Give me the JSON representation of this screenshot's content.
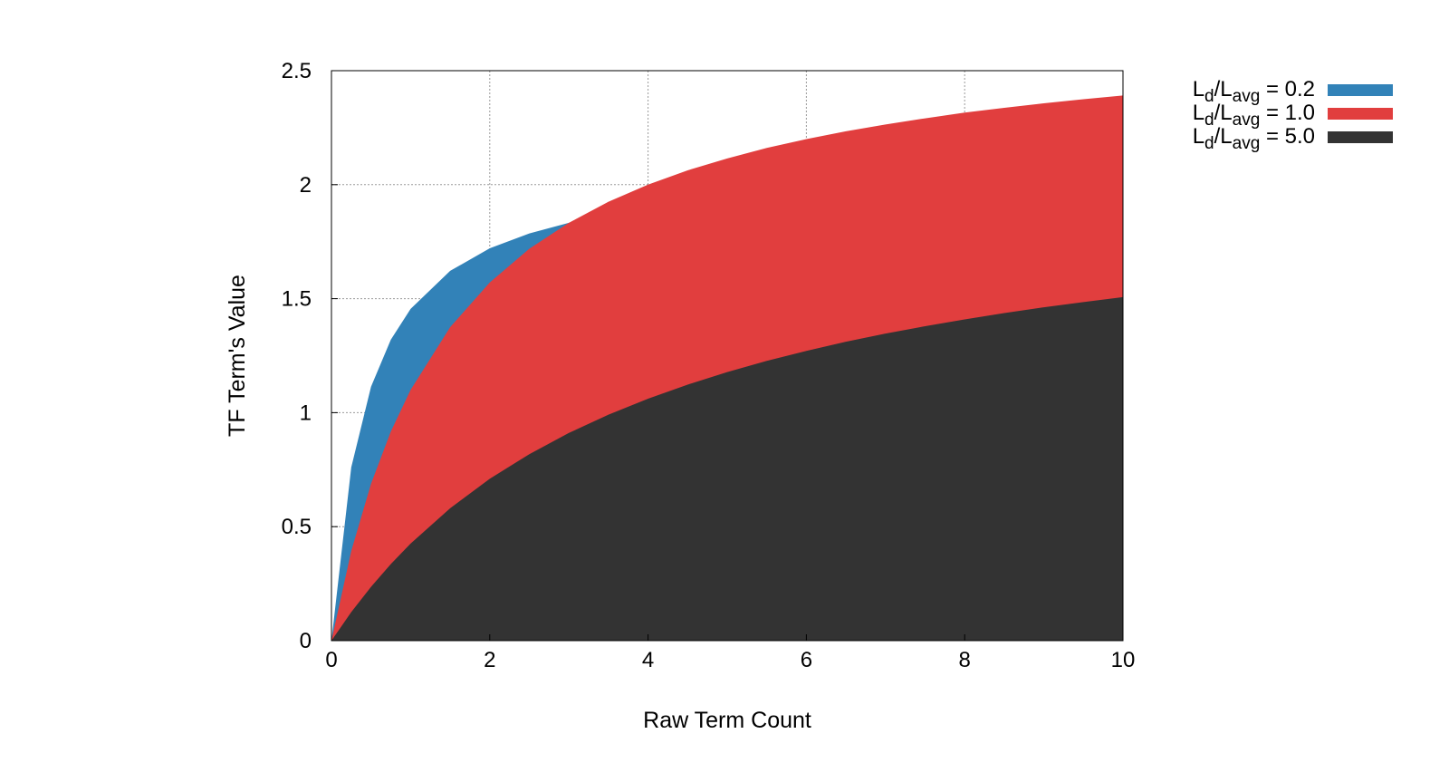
{
  "chart_data": {
    "type": "area",
    "xlabel": "Raw Term Count",
    "ylabel": "TF Term's Value",
    "xlim": [
      0,
      10
    ],
    "ylim": [
      0,
      2.5
    ],
    "xticks": [
      "0",
      "2",
      "4",
      "6",
      "8",
      "10"
    ],
    "yticks": [
      "0",
      "0.5",
      "1",
      "1.5",
      "2",
      "2.5"
    ],
    "grid": true,
    "legend_position": "top-right outside",
    "x": [
      0,
      0.25,
      0.5,
      0.75,
      1,
      1.5,
      2,
      2.5,
      3,
      3.5,
      4,
      4.5,
      5,
      5.5,
      6,
      6.5,
      7,
      7.5,
      8,
      8.5,
      9,
      9.5,
      10
    ],
    "series": [
      {
        "legend": {
          "base": "L",
          "sub1": "d",
          "sep": "/L",
          "sub2": "avg",
          "tail": " = 0.2"
        },
        "color": "#3282b8",
        "values": [
          0,
          0.76,
          1.114,
          1.32,
          1.455,
          1.622,
          1.721,
          1.786,
          1.833,
          1.867,
          1.894,
          1.916,
          1.933,
          1.948,
          1.961,
          1.971,
          1.98,
          1.988,
          1.995,
          2.002,
          2.007,
          2.012,
          2.017
        ]
      },
      {
        "legend": {
          "base": "L",
          "sub1": "d",
          "sep": "/L",
          "sub2": "avg",
          "tail": " = 1.0"
        },
        "color": "#e13e3e",
        "values": [
          0,
          0.393,
          0.688,
          0.917,
          1.1,
          1.375,
          1.571,
          1.719,
          1.833,
          1.925,
          2.0,
          2.063,
          2.115,
          2.161,
          2.2,
          2.234,
          2.264,
          2.291,
          2.316,
          2.337,
          2.357,
          2.375,
          2.391
        ]
      },
      {
        "legend": {
          "base": "L",
          "sub1": "d",
          "sep": "/L",
          "sub2": "avg",
          "tail": " = 5.0"
        },
        "color": "#333333",
        "values": [
          0,
          0.125,
          0.236,
          0.336,
          0.426,
          0.581,
          0.71,
          0.818,
          0.911,
          0.991,
          1.061,
          1.123,
          1.178,
          1.227,
          1.271,
          1.311,
          1.347,
          1.379,
          1.409,
          1.437,
          1.462,
          1.485,
          1.507
        ]
      }
    ]
  }
}
